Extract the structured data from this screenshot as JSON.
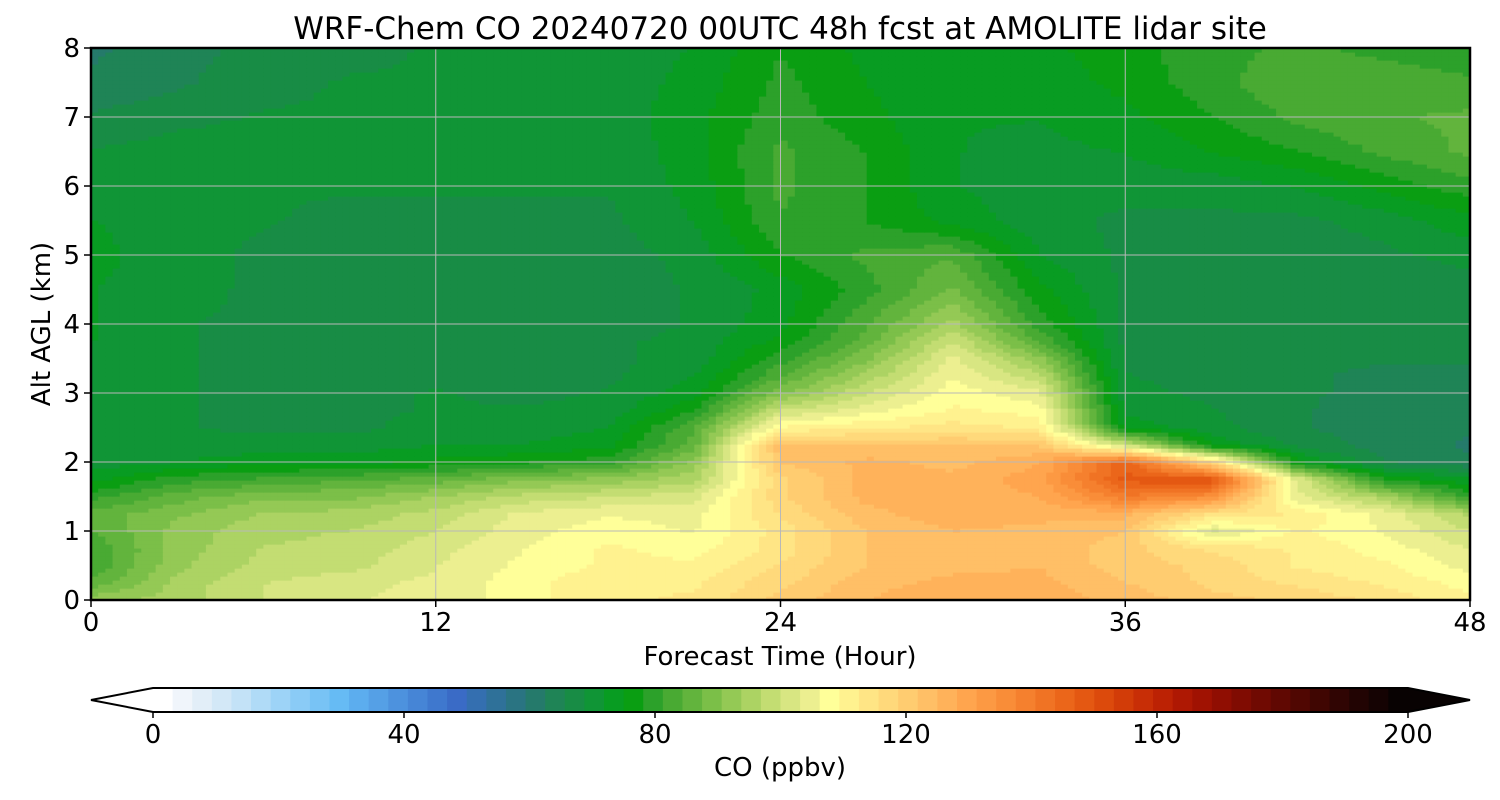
{
  "chart_data": {
    "type": "heatmap",
    "title": "WRF-Chem CO  20240720 00UTC 48h fcst at AMOLITE lidar site",
    "xlabel": "Forecast Time (Hour)",
    "ylabel": "Alt AGL (km)",
    "xlim": [
      0,
      48
    ],
    "ylim": [
      0,
      8
    ],
    "x_ticks": [
      "0",
      "12",
      "24",
      "36",
      "48"
    ],
    "y_ticks": [
      "0",
      "1",
      "2",
      "3",
      "4",
      "5",
      "6",
      "7",
      "8"
    ],
    "grid": true,
    "z_units": "ppbv",
    "x_hours": [
      0,
      3,
      6,
      9,
      12,
      15,
      18,
      21,
      24,
      27,
      30,
      33,
      36,
      39,
      42,
      45,
      48
    ],
    "y_km": [
      0,
      0.25,
      0.5,
      0.75,
      1,
      1.25,
      1.5,
      1.75,
      2,
      2.25,
      2.5,
      2.75,
      3,
      3.25,
      3.5,
      3.75,
      4,
      4.5,
      5,
      5.5,
      6,
      6.5,
      7,
      7.5,
      8
    ],
    "z_ppbv": [
      [
        93,
        95,
        100,
        103,
        104,
        108,
        112,
        113,
        120,
        125,
        127,
        127,
        124,
        120,
        118,
        115,
        110
      ],
      [
        85,
        95,
        100,
        102,
        104,
        108,
        112,
        112,
        118,
        124,
        126,
        126,
        122,
        118,
        115,
        112,
        108
      ],
      [
        82,
        93,
        98,
        99,
        103,
        107,
        110,
        110,
        116,
        122,
        124,
        125,
        120,
        118,
        112,
        110,
        105
      ],
      [
        82,
        92,
        97,
        98,
        102,
        106,
        110,
        108,
        114,
        122,
        124,
        124,
        120,
        115,
        112,
        108,
        103
      ],
      [
        84,
        92,
        96,
        97,
        100,
        105,
        108,
        106,
        114,
        122,
        125,
        124,
        122,
        102,
        110,
        106,
        100
      ],
      [
        86,
        90,
        94,
        95,
        98,
        104,
        106,
        105,
        116,
        124,
        127,
        126,
        126,
        115,
        112,
        105,
        96
      ],
      [
        80,
        86,
        90,
        90,
        94,
        98,
        100,
        102,
        118,
        126,
        126,
        128,
        140,
        135,
        104,
        95,
        80
      ],
      [
        74,
        80,
        82,
        84,
        86,
        90,
        92,
        96,
        118,
        126,
        126,
        130,
        148,
        150,
        103,
        78,
        73
      ],
      [
        70,
        72,
        74,
        74,
        76,
        78,
        80,
        92,
        122,
        126,
        124,
        128,
        146,
        118,
        76,
        66,
        63
      ],
      [
        69,
        70,
        70,
        70,
        72,
        72,
        74,
        86,
        124,
        122,
        122,
        122,
        100,
        75,
        68,
        64,
        62
      ],
      [
        69,
        69,
        68,
        68,
        70,
        70,
        72,
        84,
        110,
        112,
        114,
        112,
        74,
        70,
        66,
        64,
        63
      ],
      [
        70,
        69,
        68,
        68,
        69,
        69,
        70,
        78,
        100,
        105,
        110,
        108,
        71,
        69,
        66,
        64,
        64
      ],
      [
        71,
        69,
        68,
        68,
        69,
        68,
        69,
        74,
        90,
        100,
        108,
        104,
        70,
        68,
        66,
        65,
        65
      ],
      [
        71,
        69,
        68,
        67,
        68,
        68,
        68,
        72,
        84,
        95,
        106,
        98,
        69,
        67,
        66,
        65,
        65
      ],
      [
        71,
        69,
        68,
        67,
        68,
        68,
        68,
        70,
        80,
        90,
        104,
        92,
        68,
        67,
        66,
        66,
        66
      ],
      [
        72,
        69,
        68,
        67,
        68,
        68,
        68,
        70,
        76,
        86,
        100,
        84,
        68,
        67,
        66,
        66,
        66
      ],
      [
        72,
        69,
        68,
        67,
        67,
        67,
        67,
        69,
        74,
        84,
        95,
        80,
        68,
        67,
        66,
        66,
        66
      ],
      [
        72,
        70,
        68,
        67,
        67,
        67,
        67,
        69,
        73,
        80,
        88,
        76,
        68,
        67,
        66,
        66,
        67
      ],
      [
        73,
        70,
        68,
        67,
        67,
        67,
        67,
        70,
        78,
        82,
        84,
        72,
        68,
        68,
        67,
        68,
        70
      ],
      [
        72,
        70,
        69,
        68,
        68,
        68,
        68,
        72,
        81,
        78,
        74,
        70,
        68,
        68,
        68,
        70,
        74
      ],
      [
        71,
        70,
        69,
        69,
        69,
        69,
        69,
        73,
        82,
        78,
        72,
        70,
        70,
        70,
        72,
        76,
        80
      ],
      [
        69,
        70,
        70,
        69,
        69,
        69,
        69,
        74,
        82,
        78,
        72,
        71,
        72,
        75,
        78,
        82,
        85
      ],
      [
        66,
        68,
        69,
        69,
        69,
        69,
        70,
        74,
        80,
        76,
        72,
        72,
        74,
        78,
        82,
        84,
        85
      ],
      [
        63,
        65,
        68,
        69,
        69,
        69,
        70,
        73,
        79,
        75,
        72,
        73,
        76,
        80,
        84,
        84,
        82
      ],
      [
        62,
        64,
        67,
        68,
        69,
        69,
        70,
        72,
        78,
        74,
        72,
        74,
        77,
        80,
        82,
        80,
        78
      ]
    ],
    "colorbar": {
      "label": "CO  (ppbv)",
      "min": 0,
      "max": 200,
      "ticks": [
        "0",
        "40",
        "80",
        "120",
        "160",
        "200"
      ],
      "extend": "both",
      "colors": [
        "#ffffff",
        "#f0f5fb",
        "#e2eef8",
        "#d3e8f7",
        "#c3e2f7",
        "#b0dbf7",
        "#9dd3f7",
        "#8acbf6",
        "#78c3f5",
        "#66bbf4",
        "#5cadee",
        "#55a0e6",
        "#4d92de",
        "#4685d6",
        "#3f78ce",
        "#3a6bc6",
        "#346fb0",
        "#2f7199",
        "#2a7482",
        "#257a6b",
        "#1f8456",
        "#188c45",
        "#109536",
        "#089c22",
        "#0a9e12",
        "#2ca12a",
        "#49aa33",
        "#62b43d",
        "#7bbf48",
        "#94c955",
        "#acd363",
        "#c3dd72",
        "#d8e682",
        "#ecef90",
        "#ffff99",
        "#fff28f",
        "#ffe585",
        "#ffd97b",
        "#ffcc70",
        "#ffbf66",
        "#ffb25a",
        "#ffa54e",
        "#fc9943",
        "#f98d38",
        "#f5802e",
        "#f07324",
        "#eb661a",
        "#e45812",
        "#dc4a0c",
        "#d23c08",
        "#c82e06",
        "#bc2204",
        "#ae1803",
        "#a01202",
        "#900e02",
        "#800c02",
        "#700a02",
        "#600802",
        "#500702",
        "#400602",
        "#300503",
        "#220403",
        "#150303",
        "#080202"
      ]
    }
  }
}
